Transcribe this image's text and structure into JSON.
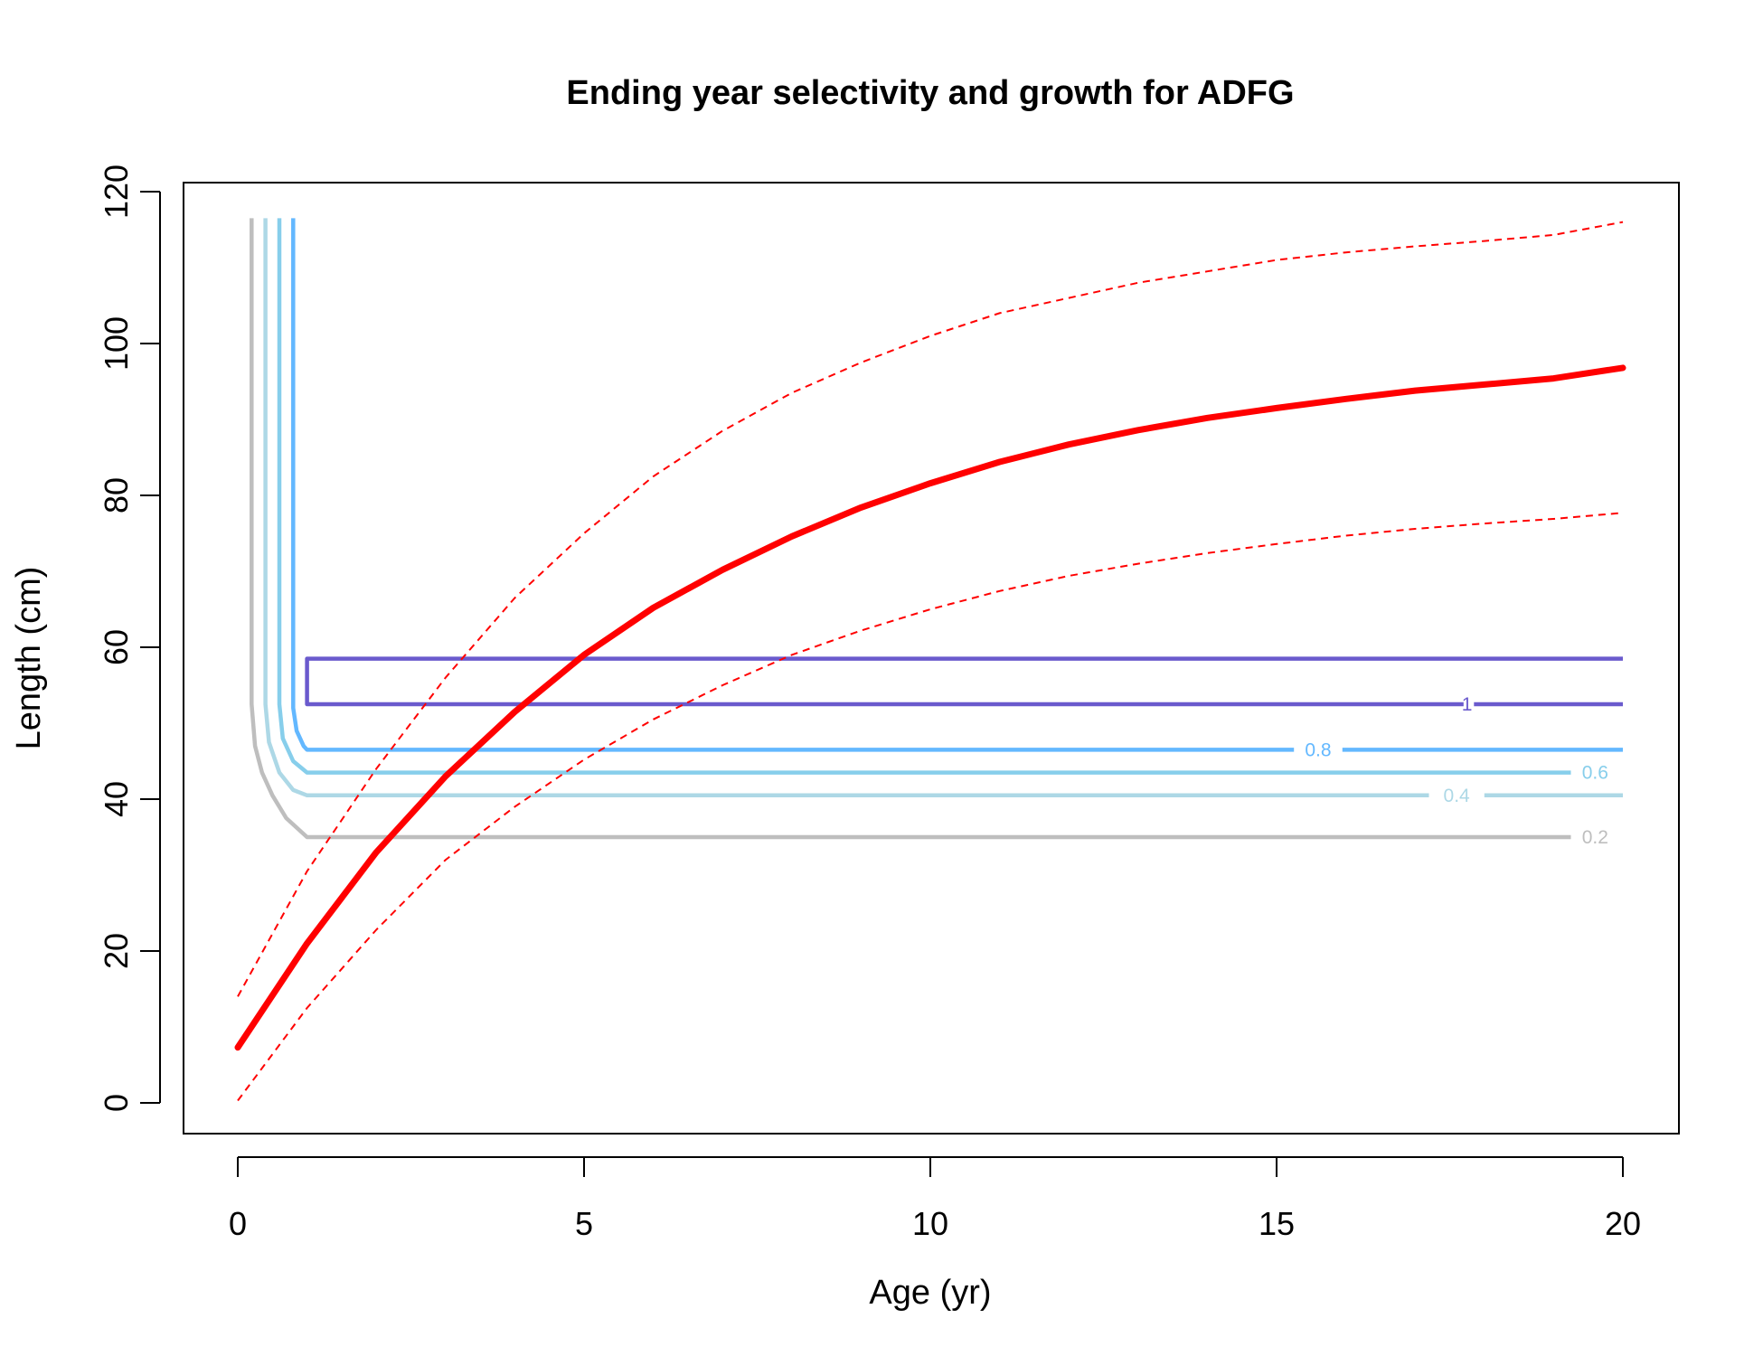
{
  "chart_data": {
    "type": "line",
    "title": "Ending year selectivity and growth for ADFG",
    "xlabel": "Age (yr)",
    "ylabel": "Length (cm)",
    "xlim": [
      -0.8,
      20.8
    ],
    "ylim": [
      -4,
      121.5
    ],
    "x_ticks": [
      0,
      5,
      10,
      15,
      20
    ],
    "x_tick_labels": [
      "0",
      "5",
      "10",
      "15",
      "20"
    ],
    "y_ticks": [
      0,
      20,
      40,
      60,
      80,
      100,
      120
    ],
    "y_tick_labels": [
      "0",
      "20",
      "40",
      "60",
      "80",
      "100",
      "120"
    ],
    "grid": false,
    "growth": {
      "mean": {
        "x": [
          0,
          1,
          2,
          3,
          4,
          5,
          6,
          7,
          8,
          9,
          10,
          11,
          12,
          13,
          14,
          15,
          16,
          17,
          18,
          19,
          20
        ],
        "y": [
          7.3,
          21.0,
          33.0,
          43.0,
          51.5,
          59.0,
          65.2,
          70.2,
          74.6,
          78.4,
          81.6,
          84.4,
          86.7,
          88.6,
          90.2,
          91.5,
          92.7,
          93.8,
          94.6,
          95.4,
          96.8
        ],
        "color": "#ff0000"
      },
      "upper": {
        "x": [
          0,
          1,
          2,
          3,
          4,
          5,
          6,
          7,
          8,
          9,
          10,
          11,
          12,
          13,
          14,
          15,
          16,
          17,
          18,
          19,
          20
        ],
        "y": [
          14.0,
          30.5,
          44.0,
          56.0,
          66.5,
          75.0,
          82.5,
          88.5,
          93.5,
          97.5,
          101.0,
          104.0,
          106.0,
          108.0,
          109.5,
          111.0,
          112.0,
          112.8,
          113.5,
          114.3,
          116.0
        ],
        "color": "#ff0000"
      },
      "lower": {
        "x": [
          0,
          1,
          2,
          3,
          4,
          5,
          6,
          7,
          8,
          9,
          10,
          11,
          12,
          13,
          14,
          15,
          16,
          17,
          18,
          19,
          20
        ],
        "y": [
          0.3,
          12.5,
          22.8,
          32.0,
          39.0,
          45.2,
          50.5,
          55.0,
          59.0,
          62.2,
          65.0,
          67.4,
          69.4,
          71.0,
          72.4,
          73.6,
          74.7,
          75.6,
          76.3,
          76.9,
          77.7
        ],
        "color": "#ff0000"
      }
    },
    "selectivity_contours": [
      {
        "level": "0.2",
        "color": "#bebebe",
        "points": [
          [
            0.2,
            116.5
          ],
          [
            0.2,
            52.5
          ],
          [
            0.25,
            47
          ],
          [
            0.35,
            43.5
          ],
          [
            0.5,
            40.5
          ],
          [
            0.7,
            37.5
          ],
          [
            1.0,
            35
          ]
        ],
        "end_x": 19.25,
        "label": "0.2",
        "label_x": 19.6,
        "y": 35
      },
      {
        "level": "0.4",
        "color": "#add8e6",
        "points": [
          [
            0.4,
            116.5
          ],
          [
            0.4,
            52.5
          ],
          [
            0.45,
            47.5
          ],
          [
            0.6,
            43.5
          ],
          [
            0.8,
            41.2
          ],
          [
            1.0,
            40.5
          ]
        ],
        "end_x": 17.2,
        "label": "0.4",
        "label_x": 17.6,
        "resume_x": 18.0,
        "resume_end_x": 20,
        "y": 40.5
      },
      {
        "level": "0.6",
        "color": "#87ceeb",
        "points": [
          [
            0.6,
            116.5
          ],
          [
            0.6,
            52.5
          ],
          [
            0.65,
            48
          ],
          [
            0.8,
            45
          ],
          [
            1.0,
            43.5
          ]
        ],
        "end_x": 19.25,
        "label": "0.6",
        "label_x": 19.6,
        "y": 43.5
      },
      {
        "level": "0.8",
        "color": "#63b8ff",
        "points": [
          [
            0.8,
            116.5
          ],
          [
            0.8,
            52
          ],
          [
            0.85,
            49
          ],
          [
            0.95,
            47
          ],
          [
            1.0,
            46.5
          ]
        ],
        "end_x": 15.25,
        "label": "0.8",
        "label_x": 15.6,
        "resume_x": 15.95,
        "resume_end_x": 20,
        "y": 46.5
      },
      {
        "level": "1",
        "color": "#6a5acd",
        "points": [
          [
            20,
            58.5
          ],
          [
            1.0,
            58.5
          ],
          [
            1.0,
            52.5
          ]
        ],
        "end_x": 17.7,
        "label": "1",
        "label_x": 17.75,
        "resume_x": 17.85,
        "resume_end_x": 20,
        "y": 52.5
      }
    ]
  }
}
